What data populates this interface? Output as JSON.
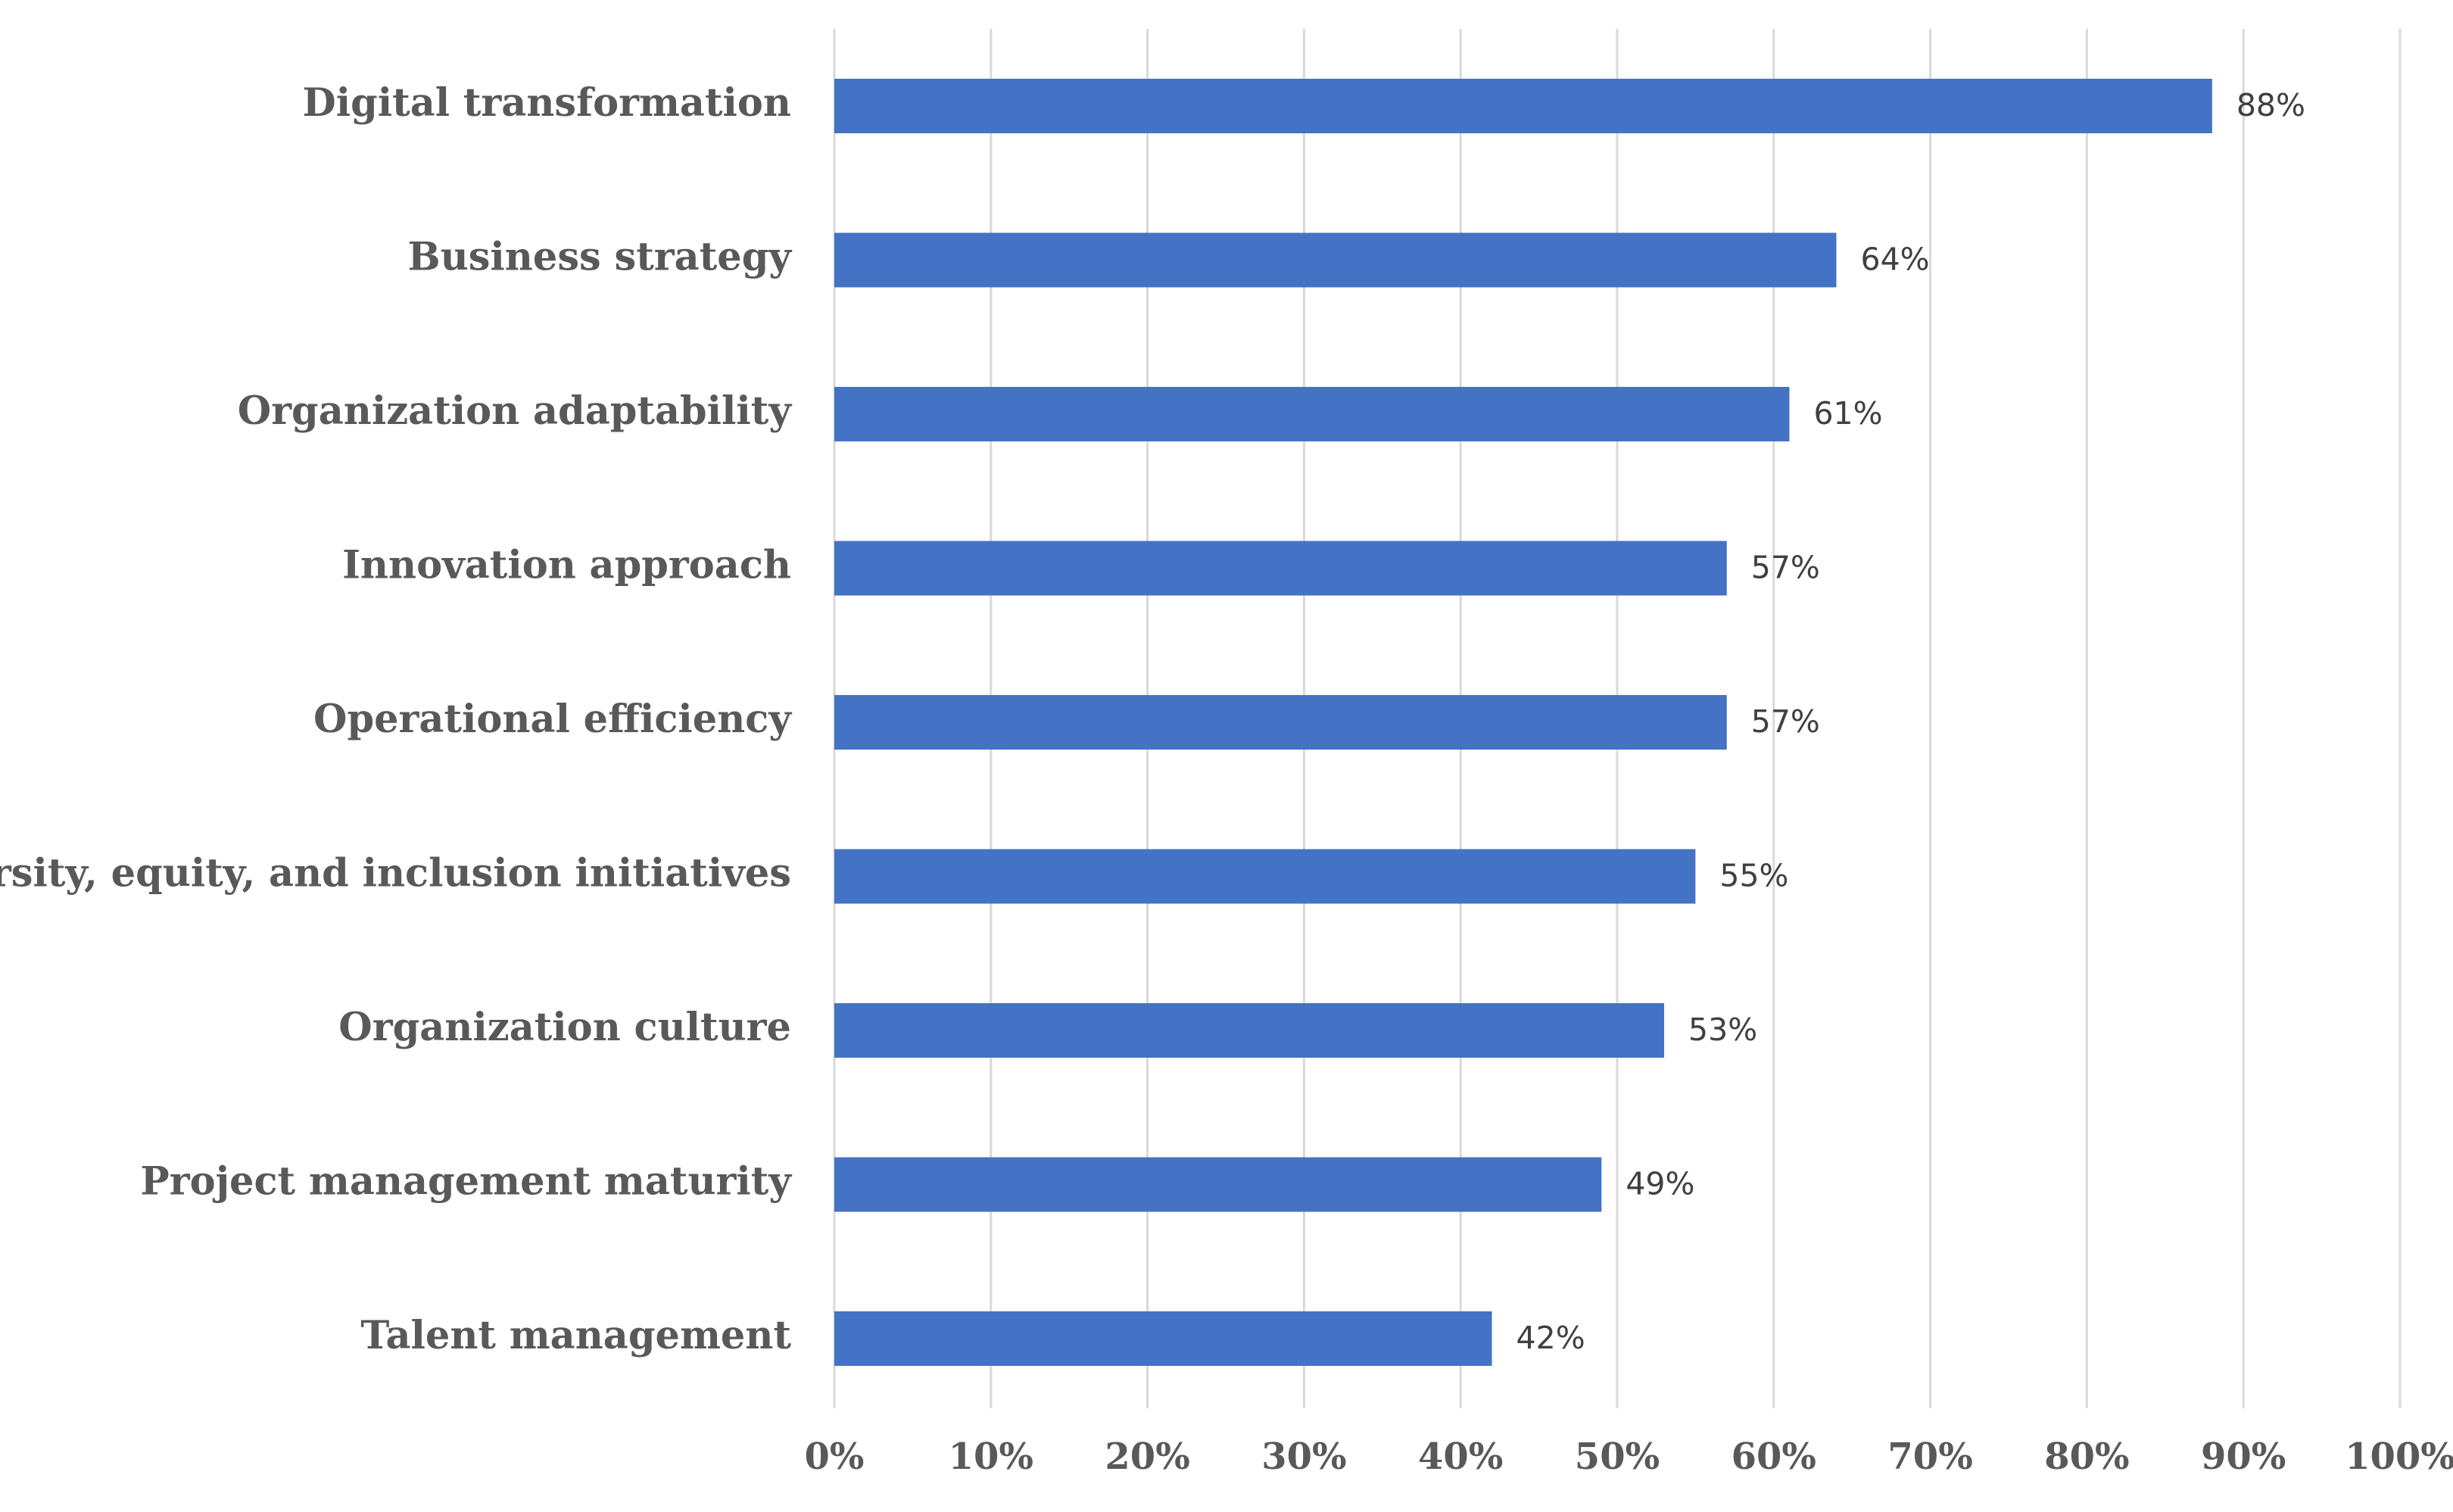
{
  "chart_data": {
    "type": "bar",
    "orientation": "horizontal",
    "title": "",
    "xlabel": "",
    "ylabel": "",
    "categories": [
      "Digital transformation",
      "Business strategy",
      "Organization adaptability",
      "Innovation approach",
      "Operational efficiency",
      "Diversity, equity, and inclusion initiatives",
      "Organization culture",
      "Project management maturity",
      "Talent management"
    ],
    "values": [
      88,
      64,
      61,
      57,
      57,
      55,
      53,
      49,
      42
    ],
    "data_labels": [
      "88%",
      "64%",
      "61%",
      "57%",
      "57%",
      "55%",
      "53%",
      "49%",
      "42%"
    ],
    "xlim": [
      0,
      100
    ],
    "x_ticks": [
      0,
      10,
      20,
      30,
      40,
      50,
      60,
      70,
      80,
      90,
      100
    ],
    "x_tick_labels": [
      "0%",
      "10%",
      "20%",
      "30%",
      "40%",
      "50%",
      "60%",
      "70%",
      "80%",
      "90%",
      "100%"
    ],
    "grid": true,
    "legend": "none",
    "bar_color": "#4472c4"
  }
}
